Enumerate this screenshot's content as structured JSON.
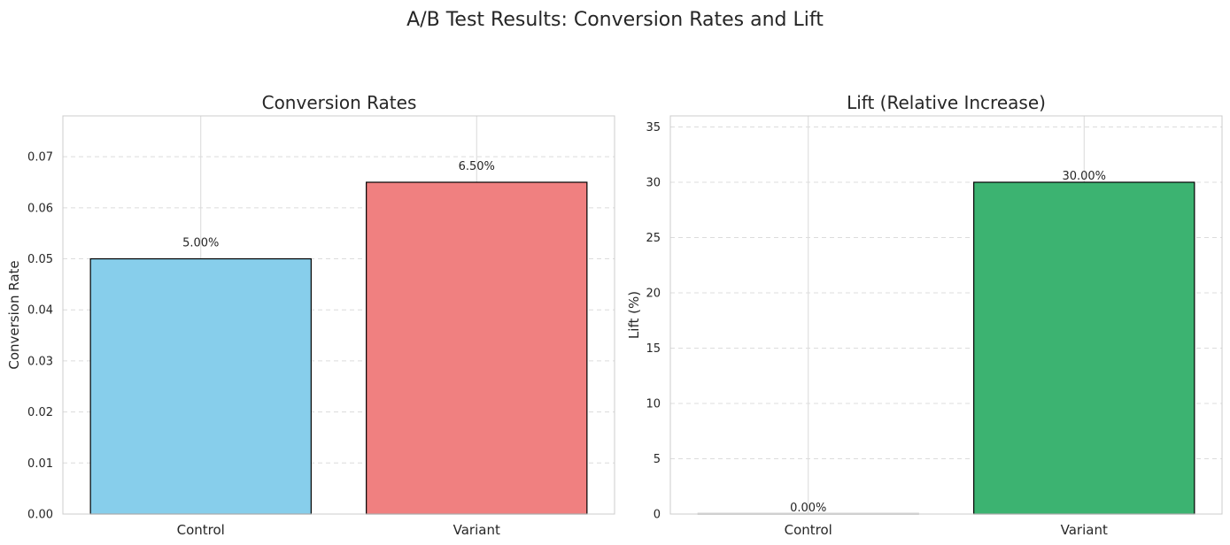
{
  "figure": {
    "title": "A/B Test Results: Conversion Rates and Lift"
  },
  "chart_data": [
    {
      "type": "bar",
      "title": "Conversion Rates",
      "xlabel": "",
      "ylabel": "Conversion Rate",
      "categories": [
        "Control",
        "Variant"
      ],
      "values": [
        0.05,
        0.065
      ],
      "data_labels": [
        "5.00%",
        "6.50%"
      ],
      "colors": [
        "#87CEEB",
        "#F08080"
      ],
      "edge_color": "#000000",
      "ylim": [
        0,
        0.078
      ],
      "yticks": [
        0.0,
        0.01,
        0.02,
        0.03,
        0.04,
        0.05,
        0.06,
        0.07
      ],
      "ytick_labels": [
        "0.00",
        "0.01",
        "0.02",
        "0.03",
        "0.04",
        "0.05",
        "0.06",
        "0.07"
      ],
      "grid": true,
      "legend": "none"
    },
    {
      "type": "bar",
      "title": "Lift (Relative Increase)",
      "xlabel": "",
      "ylabel": "Lift (%)",
      "categories": [
        "Control",
        "Variant"
      ],
      "values": [
        0,
        30
      ],
      "data_labels": [
        "0.00%",
        "30.00%"
      ],
      "colors": [
        "#D3D3D3",
        "#3CB371"
      ],
      "edge_color": "#000000",
      "ylim": [
        0,
        36
      ],
      "yticks": [
        0,
        5,
        10,
        15,
        20,
        25,
        30,
        35
      ],
      "ytick_labels": [
        "0",
        "5",
        "10",
        "15",
        "20",
        "25",
        "30",
        "35"
      ],
      "grid": true,
      "legend": "none"
    }
  ]
}
